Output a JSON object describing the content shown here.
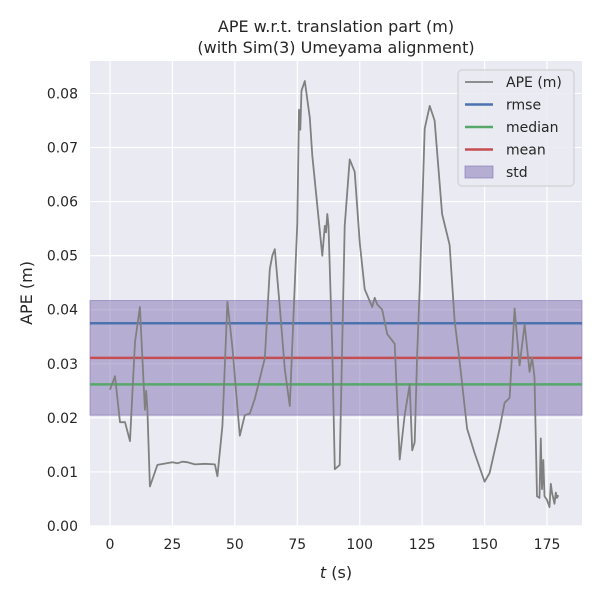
{
  "chart_data": {
    "type": "line",
    "title": "APE w.r.t. translation part (m)",
    "subtitle": "(with Sim(3) Umeyama alignment)",
    "xlabel_var": "t",
    "xlabel_unit": " (s)",
    "ylabel": "APE (m)",
    "xlim": [
      -8,
      189
    ],
    "ylim": [
      0,
      0.086
    ],
    "x_ticks": [
      0,
      25,
      50,
      75,
      100,
      125,
      150,
      175
    ],
    "y_ticks": [
      0.0,
      0.01,
      0.02,
      0.03,
      0.04,
      0.05,
      0.06,
      0.07,
      0.08
    ],
    "y_tick_labels": [
      "0.00",
      "0.01",
      "0.02",
      "0.03",
      "0.04",
      "0.05",
      "0.06",
      "0.07",
      "0.08"
    ],
    "grid": true,
    "legend_position": "top-right",
    "colors": {
      "background": "#eaeaf2",
      "grid": "#ffffff",
      "ape": "#808080",
      "rmse": "#4c72b0",
      "median": "#55a868",
      "mean": "#c44e52",
      "std_fill": "#8172b2"
    },
    "stats": {
      "rmse": 0.0375,
      "median": 0.0262,
      "mean": 0.0311,
      "std_low": 0.0205,
      "std_high": 0.0417
    },
    "legend": [
      "APE (m)",
      "rmse",
      "median",
      "mean",
      "std"
    ],
    "series": [
      {
        "name": "APE (m)",
        "x": [
          0,
          2,
          4,
          6,
          8,
          9,
          10,
          12,
          14,
          14.5,
          15,
          16,
          19,
          25,
          27,
          29,
          31,
          34,
          38,
          42,
          43,
          45,
          47,
          49,
          52,
          54,
          56,
          58,
          62,
          64,
          65,
          66,
          68,
          70,
          72,
          75,
          75.7,
          76.2,
          76.7,
          78,
          80,
          81,
          85,
          86,
          86.5,
          87,
          87.5,
          89,
          90,
          92,
          94,
          96,
          98,
          100,
          102,
          105,
          106,
          107,
          109,
          111,
          114,
          116,
          118,
          120,
          121,
          122,
          123,
          124,
          126,
          128,
          130,
          133,
          136,
          138,
          140,
          143,
          146,
          150,
          152,
          156,
          158,
          160,
          162,
          164,
          166,
          168,
          169,
          170,
          171,
          172,
          172.5,
          173,
          173.5,
          174,
          175,
          176,
          176.5,
          177,
          178,
          178.5,
          179,
          179.5
        ],
        "y": [
          0.0252,
          0.0277,
          0.0192,
          0.0192,
          0.0157,
          0.025,
          0.034,
          0.0405,
          0.0215,
          0.025,
          0.0215,
          0.0073,
          0.0113,
          0.0118,
          0.0116,
          0.0119,
          0.0118,
          0.0114,
          0.0115,
          0.0114,
          0.0092,
          0.0185,
          0.0415,
          0.033,
          0.0167,
          0.0205,
          0.0208,
          0.0235,
          0.031,
          0.0475,
          0.05,
          0.0512,
          0.0405,
          0.029,
          0.0222,
          0.056,
          0.077,
          0.0733,
          0.0805,
          0.0823,
          0.0755,
          0.0685,
          0.05,
          0.0555,
          0.0543,
          0.0577,
          0.0555,
          0.0325,
          0.0105,
          0.0113,
          0.0555,
          0.0678,
          0.0655,
          0.0525,
          0.0438,
          0.0405,
          0.0422,
          0.041,
          0.04,
          0.0355,
          0.0337,
          0.0123,
          0.0205,
          0.0262,
          0.014,
          0.0155,
          0.032,
          0.044,
          0.0735,
          0.0777,
          0.075,
          0.0577,
          0.052,
          0.038,
          0.0305,
          0.018,
          0.0135,
          0.0082,
          0.0098,
          0.018,
          0.0228,
          0.0237,
          0.0402,
          0.0297,
          0.0373,
          0.0285,
          0.0312,
          0.0275,
          0.0055,
          0.0052,
          0.0162,
          0.0068,
          0.0122,
          0.0055,
          0.0048,
          0.0035,
          0.0078,
          0.0062,
          0.0041,
          0.0062,
          0.0052,
          0.0057
        ]
      }
    ]
  }
}
